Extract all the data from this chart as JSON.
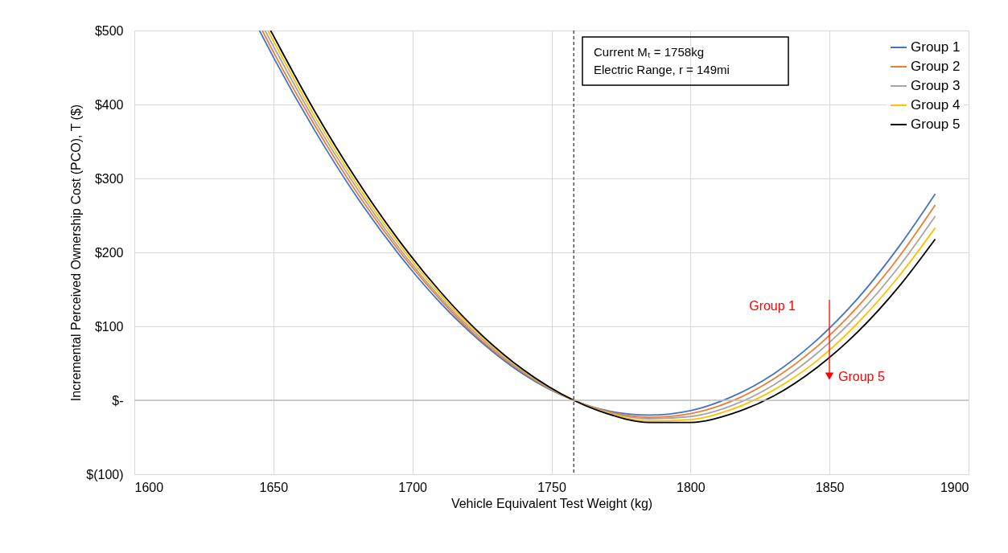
{
  "chart_data": {
    "type": "line",
    "xlabel": "Vehicle Equivalent Test Weight (kg)",
    "ylabel": "Incremental Perceived Ownership Cost (PCO), T ($)",
    "xlim": [
      1600,
      1900
    ],
    "xticks": [
      {
        "value": 1600,
        "label": "1600"
      },
      {
        "value": 1650,
        "label": "1650"
      },
      {
        "value": 1700,
        "label": "1700"
      },
      {
        "value": 1750,
        "label": "1750"
      },
      {
        "value": 1800,
        "label": "1800"
      },
      {
        "value": 1850,
        "label": "1850"
      },
      {
        "value": 1900,
        "label": "1900"
      }
    ],
    "ylim": [
      -100,
      500
    ],
    "yticks": [
      {
        "value": -100,
        "label": "$(100)"
      },
      {
        "value": 0,
        "label": "$-"
      },
      {
        "value": 100,
        "label": "$100"
      },
      {
        "value": 200,
        "label": "$200"
      },
      {
        "value": 300,
        "label": "$300"
      },
      {
        "value": 400,
        "label": "$400"
      },
      {
        "value": 500,
        "label": "$500"
      }
    ],
    "grid": true,
    "legend": "top right",
    "marker": "none",
    "line_style": "solid",
    "series": [
      {
        "name": "Group 1",
        "color": "#4472c4",
        "x": [
          1645,
          1650,
          1665,
          1680,
          1695,
          1710,
          1725,
          1740,
          1758,
          1770,
          1785,
          1800,
          1815,
          1830,
          1845,
          1860,
          1875,
          1888
        ],
        "values": [
          500,
          464,
          364,
          275,
          198,
          132,
          78,
          35,
          0,
          -14,
          -20,
          -14,
          5,
          36,
          80,
          137,
          208,
          279
        ]
      },
      {
        "name": "Group 2",
        "color": "#ed7d31",
        "x": [
          1646,
          1650,
          1665,
          1680,
          1695,
          1710,
          1725,
          1740,
          1758,
          1770,
          1785,
          1800,
          1815,
          1830,
          1845,
          1860,
          1875,
          1888
        ],
        "values": [
          500,
          471,
          371,
          281,
          203,
          136,
          80,
          37,
          0,
          -15,
          -23,
          -18,
          -1,
          29,
          71,
          126,
          194,
          264
        ]
      },
      {
        "name": "Group 3",
        "color": "#a5a5a5",
        "x": [
          1647,
          1650,
          1665,
          1680,
          1695,
          1710,
          1725,
          1740,
          1758,
          1770,
          1785,
          1800,
          1815,
          1830,
          1845,
          1860,
          1875,
          1888
        ],
        "values": [
          500,
          479,
          377,
          287,
          207,
          139,
          83,
          38,
          0,
          -16,
          -25,
          -22,
          -7,
          21,
          62,
          115,
          181,
          249
        ]
      },
      {
        "name": "Group 4",
        "color": "#ffc000",
        "x": [
          1648,
          1650,
          1665,
          1680,
          1695,
          1710,
          1725,
          1740,
          1758,
          1770,
          1785,
          1800,
          1815,
          1830,
          1845,
          1860,
          1875,
          1888
        ],
        "values": [
          500,
          486,
          383,
          292,
          212,
          143,
          86,
          40,
          0,
          -17,
          -28,
          -26,
          -12,
          14,
          52,
          104,
          168,
          233
        ]
      },
      {
        "name": "Group 5",
        "color": "#000000",
        "x": [
          1649,
          1650,
          1665,
          1680,
          1695,
          1710,
          1725,
          1740,
          1758,
          1770,
          1785,
          1800,
          1815,
          1830,
          1845,
          1860,
          1875,
          1888
        ],
        "values": [
          500,
          493,
          390,
          298,
          217,
          147,
          88,
          41,
          0,
          -18,
          -30,
          -30,
          -18,
          6,
          43,
          92,
          154,
          218
        ]
      }
    ],
    "ref_lines": [
      {
        "axis": "x",
        "value": 1758,
        "color": "#000000",
        "line_style": "dashed"
      }
    ],
    "annotations": [
      "Current Mₜ = 1758kg",
      "Electric Range, r = 149mi",
      "Group 1",
      "Group 5"
    ]
  }
}
